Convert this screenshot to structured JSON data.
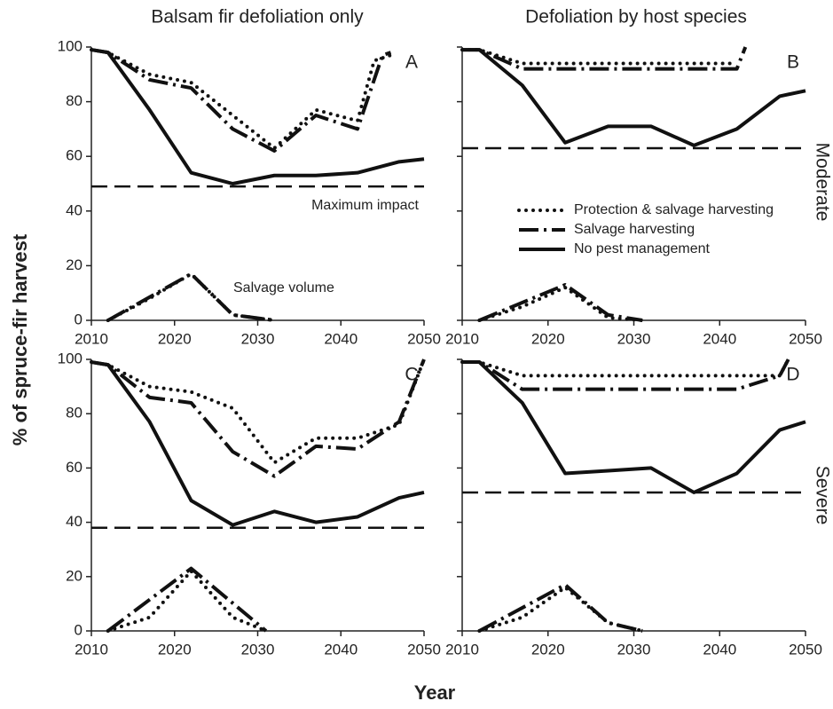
{
  "column_titles": [
    "Balsam fir defoliation only",
    "Defoliation by host species"
  ],
  "row_labels": [
    "Moderate",
    "Severe"
  ],
  "ylabel": "% of spruce-fir harvest",
  "xlabel": "Year",
  "chart_data": [
    {
      "type": "line",
      "label": "A",
      "xlim": [
        2010,
        2050
      ],
      "ylim": [
        0,
        100
      ],
      "xticks": [
        2010,
        2020,
        2030,
        2040,
        2050
      ],
      "yticks": [
        0,
        20,
        40,
        60,
        80,
        100
      ],
      "show_ytick_labels": true,
      "annotations": [
        "Maximum impact",
        "Salvage volume"
      ],
      "reference_line": 49,
      "reference_style": "dashed",
      "series": [
        {
          "name": "Protection & salvage harvesting",
          "style": "dotted",
          "color": "#111111",
          "x": [
            2010,
            2012,
            2017,
            2022,
            2027,
            2032,
            2037,
            2042,
            2044,
            2046
          ],
          "values": [
            99,
            98,
            90,
            87,
            75,
            63,
            77,
            73,
            95,
            97
          ]
        },
        {
          "name": "Salvage harvesting",
          "style": "dashdot",
          "color": "#111111",
          "x": [
            2010,
            2012,
            2017,
            2022,
            2027,
            2032,
            2037,
            2042,
            2045,
            2046
          ],
          "values": [
            99,
            98,
            88,
            85,
            70,
            62,
            75,
            70,
            97,
            98
          ]
        },
        {
          "name": "No pest management",
          "style": "solid",
          "color": "#111111",
          "x": [
            2010,
            2012,
            2017,
            2022,
            2027,
            2032,
            2037,
            2042,
            2047,
            2050
          ],
          "values": [
            99,
            98,
            77,
            54,
            50,
            53,
            53,
            54,
            58,
            59
          ]
        }
      ],
      "volume_series": [
        {
          "style": "dotted",
          "color": "#111111",
          "x": [
            2012,
            2017,
            2022,
            2027,
            2032
          ],
          "values": [
            0,
            8,
            17,
            2,
            0
          ]
        },
        {
          "style": "dashdot",
          "color": "#111111",
          "x": [
            2012,
            2022,
            2027,
            2032
          ],
          "values": [
            0,
            17,
            2,
            0
          ]
        }
      ]
    },
    {
      "type": "line",
      "label": "B",
      "xlim": [
        2010,
        2050
      ],
      "ylim": [
        0,
        100
      ],
      "xticks": [
        2010,
        2020,
        2030,
        2040,
        2050
      ],
      "yticks": [
        0,
        20,
        40,
        60,
        80,
        100
      ],
      "show_ytick_labels": false,
      "legend": true,
      "reference_line": 63,
      "reference_style": "dashed",
      "series": [
        {
          "name": "Protection & salvage harvesting",
          "style": "dotted",
          "color": "#111111",
          "x": [
            2010,
            2012,
            2017,
            2022,
            2032,
            2042
          ],
          "values": [
            99,
            99,
            94,
            94,
            94,
            94
          ]
        },
        {
          "name": "Salvage harvesting",
          "style": "dashdot",
          "color": "#111111",
          "x": [
            2010,
            2012,
            2017,
            2022,
            2032,
            2042,
            2043
          ],
          "values": [
            99,
            99,
            92,
            92,
            92,
            92,
            100
          ]
        },
        {
          "name": "No pest management",
          "style": "solid",
          "color": "#111111",
          "x": [
            2010,
            2012,
            2017,
            2022,
            2027,
            2032,
            2037,
            2042,
            2047,
            2050
          ],
          "values": [
            99,
            99,
            86,
            65,
            71,
            71,
            64,
            70,
            82,
            84
          ]
        }
      ],
      "volume_series": [
        {
          "style": "dotted",
          "color": "#111111",
          "x": [
            2012,
            2017,
            2022,
            2027,
            2031
          ],
          "values": [
            0,
            5,
            12,
            1,
            0
          ]
        },
        {
          "style": "dashdot",
          "color": "#111111",
          "x": [
            2012,
            2022,
            2027,
            2031
          ],
          "values": [
            0,
            13,
            2,
            0
          ]
        }
      ]
    },
    {
      "type": "line",
      "label": "C",
      "xlim": [
        2010,
        2050
      ],
      "ylim": [
        0,
        100
      ],
      "xticks": [
        2010,
        2020,
        2030,
        2040,
        2050
      ],
      "yticks": [
        0,
        20,
        40,
        60,
        80,
        100
      ],
      "show_ytick_labels": true,
      "reference_line": 38,
      "reference_style": "dashed",
      "series": [
        {
          "name": "Protection & salvage harvesting",
          "style": "dotted",
          "color": "#111111",
          "x": [
            2010,
            2012,
            2017,
            2022,
            2027,
            2032,
            2037,
            2042,
            2047,
            2050
          ],
          "values": [
            99,
            98,
            90,
            88,
            82,
            62,
            71,
            71,
            76,
            100
          ]
        },
        {
          "name": "Salvage harvesting",
          "style": "dashdot",
          "color": "#111111",
          "x": [
            2010,
            2012,
            2017,
            2022,
            2027,
            2032,
            2037,
            2042,
            2047,
            2050
          ],
          "values": [
            99,
            98,
            86,
            84,
            66,
            57,
            68,
            67,
            77,
            100
          ]
        },
        {
          "name": "No pest management",
          "style": "solid",
          "color": "#111111",
          "x": [
            2010,
            2012,
            2017,
            2022,
            2027,
            2032,
            2037,
            2042,
            2047,
            2050
          ],
          "values": [
            99,
            98,
            77,
            48,
            39,
            44,
            40,
            42,
            49,
            51
          ]
        }
      ],
      "volume_series": [
        {
          "style": "dotted",
          "color": "#111111",
          "x": [
            2012,
            2017,
            2022,
            2027,
            2031
          ],
          "values": [
            0,
            5,
            22,
            5,
            0
          ]
        },
        {
          "style": "dashdot",
          "color": "#111111",
          "x": [
            2012,
            2022,
            2031
          ],
          "values": [
            0,
            23,
            0
          ]
        }
      ]
    },
    {
      "type": "line",
      "label": "D",
      "xlim": [
        2010,
        2050
      ],
      "ylim": [
        0,
        100
      ],
      "xticks": [
        2010,
        2020,
        2030,
        2040,
        2050
      ],
      "yticks": [
        0,
        20,
        40,
        60,
        80,
        100
      ],
      "show_ytick_labels": false,
      "reference_line": 51,
      "reference_style": "dashed",
      "series": [
        {
          "name": "Protection & salvage harvesting",
          "style": "dotted",
          "color": "#111111",
          "x": [
            2010,
            2012,
            2017,
            2022,
            2032,
            2042,
            2047,
            2048
          ],
          "values": [
            99,
            99,
            94,
            94,
            94,
            94,
            94,
            100
          ]
        },
        {
          "name": "Salvage harvesting",
          "style": "dashdot",
          "color": "#111111",
          "x": [
            2010,
            2012,
            2017,
            2022,
            2032,
            2042,
            2047,
            2048
          ],
          "values": [
            99,
            99,
            89,
            89,
            89,
            89,
            94,
            100
          ]
        },
        {
          "name": "No pest management",
          "style": "solid",
          "color": "#111111",
          "x": [
            2010,
            2012,
            2017,
            2022,
            2027,
            2032,
            2037,
            2042,
            2047,
            2050
          ],
          "values": [
            99,
            99,
            84,
            58,
            59,
            60,
            51,
            58,
            74,
            77
          ]
        }
      ],
      "volume_series": [
        {
          "style": "dotted",
          "color": "#111111",
          "x": [
            2012,
            2017,
            2022,
            2027,
            2031
          ],
          "values": [
            0,
            5,
            16,
            3,
            0
          ]
        },
        {
          "style": "dashdot",
          "color": "#111111",
          "x": [
            2012,
            2022,
            2027,
            2031
          ],
          "values": [
            0,
            17,
            3,
            0
          ]
        }
      ]
    }
  ]
}
